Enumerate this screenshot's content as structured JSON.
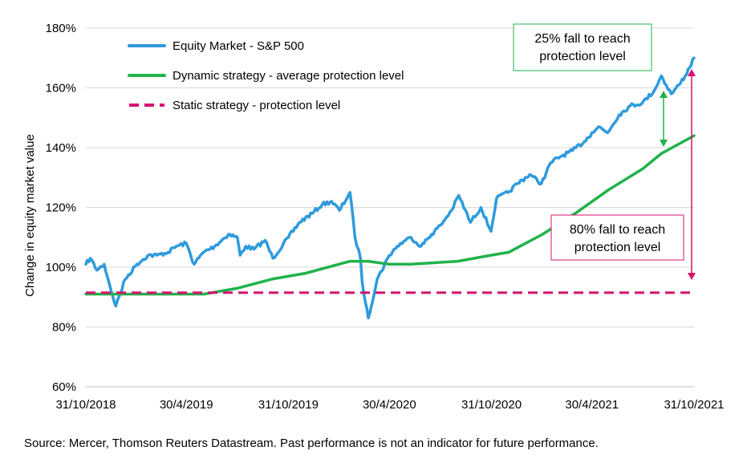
{
  "chart_data": {
    "type": "line",
    "title": "",
    "ylabel": "Change in equity market value",
    "xlabel": "",
    "ylim": [
      60,
      180
    ],
    "ytick_values": [
      60,
      80,
      100,
      120,
      140,
      160,
      180
    ],
    "ytick_labels": [
      "60%",
      "80%",
      "100%",
      "120%",
      "140%",
      "160%",
      "180%"
    ],
    "xlim": [
      "2018-10-31",
      "2021-10-31"
    ],
    "xtick_values": [
      "2018-10-31",
      "2019-04-30",
      "2019-10-31",
      "2020-04-30",
      "2020-10-31",
      "2021-04-30",
      "2021-10-31"
    ],
    "xtick_labels": [
      "31/10/2018",
      "30/4/2019",
      "31/10/2019",
      "30/4/2020",
      "31/10/2020",
      "30/4/2021",
      "31/10/2021"
    ],
    "grid": "horizontal",
    "legend_position": "top-left",
    "series": [
      {
        "name": "Equity Market - S&P 500",
        "color": "#2E9BDC",
        "style": "solid",
        "x": [
          "2018-10-31",
          "2018-11-08",
          "2018-11-20",
          "2018-12-03",
          "2018-12-13",
          "2018-12-24",
          "2019-01-10",
          "2019-01-31",
          "2019-02-20",
          "2019-03-08",
          "2019-03-28",
          "2019-04-12",
          "2019-04-30",
          "2019-05-14",
          "2019-05-31",
          "2019-06-20",
          "2019-07-15",
          "2019-07-31",
          "2019-08-05",
          "2019-08-15",
          "2019-08-30",
          "2019-09-19",
          "2019-10-03",
          "2019-10-31",
          "2019-11-20",
          "2019-12-13",
          "2019-12-31",
          "2020-01-17",
          "2020-01-31",
          "2020-02-19",
          "2020-02-28",
          "2020-03-09",
          "2020-03-12",
          "2020-03-18",
          "2020-03-23",
          "2020-04-08",
          "2020-04-30",
          "2020-05-14",
          "2020-05-29",
          "2020-06-08",
          "2020-06-26",
          "2020-07-15",
          "2020-07-31",
          "2020-08-20",
          "2020-09-02",
          "2020-09-23",
          "2020-10-12",
          "2020-10-30",
          "2020-11-09",
          "2020-11-30",
          "2020-12-17",
          "2021-01-08",
          "2021-01-29",
          "2021-02-15",
          "2021-03-04",
          "2021-03-26",
          "2021-04-16",
          "2021-04-30",
          "2021-05-12",
          "2021-05-28",
          "2021-06-18",
          "2021-07-08",
          "2021-07-30",
          "2021-08-20",
          "2021-09-02",
          "2021-09-20",
          "2021-10-04",
          "2021-10-15",
          "2021-10-31"
        ],
        "values": [
          101,
          103,
          99,
          101,
          94,
          87,
          96,
          101,
          104,
          104,
          105,
          107,
          108,
          101,
          105,
          107,
          111,
          110,
          104,
          107,
          106,
          109,
          103,
          110,
          115,
          118,
          121,
          122,
          119,
          125,
          110,
          103,
          95,
          88,
          83,
          96,
          104,
          107,
          109,
          110,
          107,
          111,
          114,
          119,
          124,
          115,
          120,
          112,
          123,
          125,
          128,
          131,
          128,
          135,
          137,
          139,
          142,
          145,
          147,
          145,
          151,
          154,
          155,
          159,
          164,
          158,
          161,
          164,
          170
        ]
      },
      {
        "name": "Dynamic strategy - average protection level",
        "color": "#21B24B",
        "style": "solid",
        "x": [
          "2018-10-31",
          "2018-12-24",
          "2019-03-01",
          "2019-06-01",
          "2019-08-01",
          "2019-10-01",
          "2019-12-01",
          "2020-02-19",
          "2020-03-23",
          "2020-04-30",
          "2020-06-08",
          "2020-08-31",
          "2020-10-30",
          "2020-12-01",
          "2021-01-31",
          "2021-03-31",
          "2021-05-31",
          "2021-07-31",
          "2021-09-02",
          "2021-10-31"
        ],
        "values": [
          91,
          91,
          91,
          91,
          93,
          96,
          98,
          102,
          102,
          101,
          101,
          102,
          104,
          105,
          111,
          118,
          126,
          133,
          138,
          144
        ]
      },
      {
        "name": "Static strategy - protection level",
        "color": "#D4146F",
        "style": "dashed",
        "x": [
          "2018-10-31",
          "2021-10-31"
        ],
        "values": [
          91.5,
          91.5
        ]
      }
    ],
    "annotations": [
      {
        "text_lines": [
          "25% fall to reach",
          "protection level"
        ],
        "border_color": "#21B24B"
      },
      {
        "text_lines": [
          "80% fall to reach",
          "protection level"
        ],
        "border_color": "#D4146F"
      }
    ]
  },
  "footer": {
    "source": "Source: Mercer, Thomson Reuters Datastream. Past performance is not an indicator for future performance."
  }
}
